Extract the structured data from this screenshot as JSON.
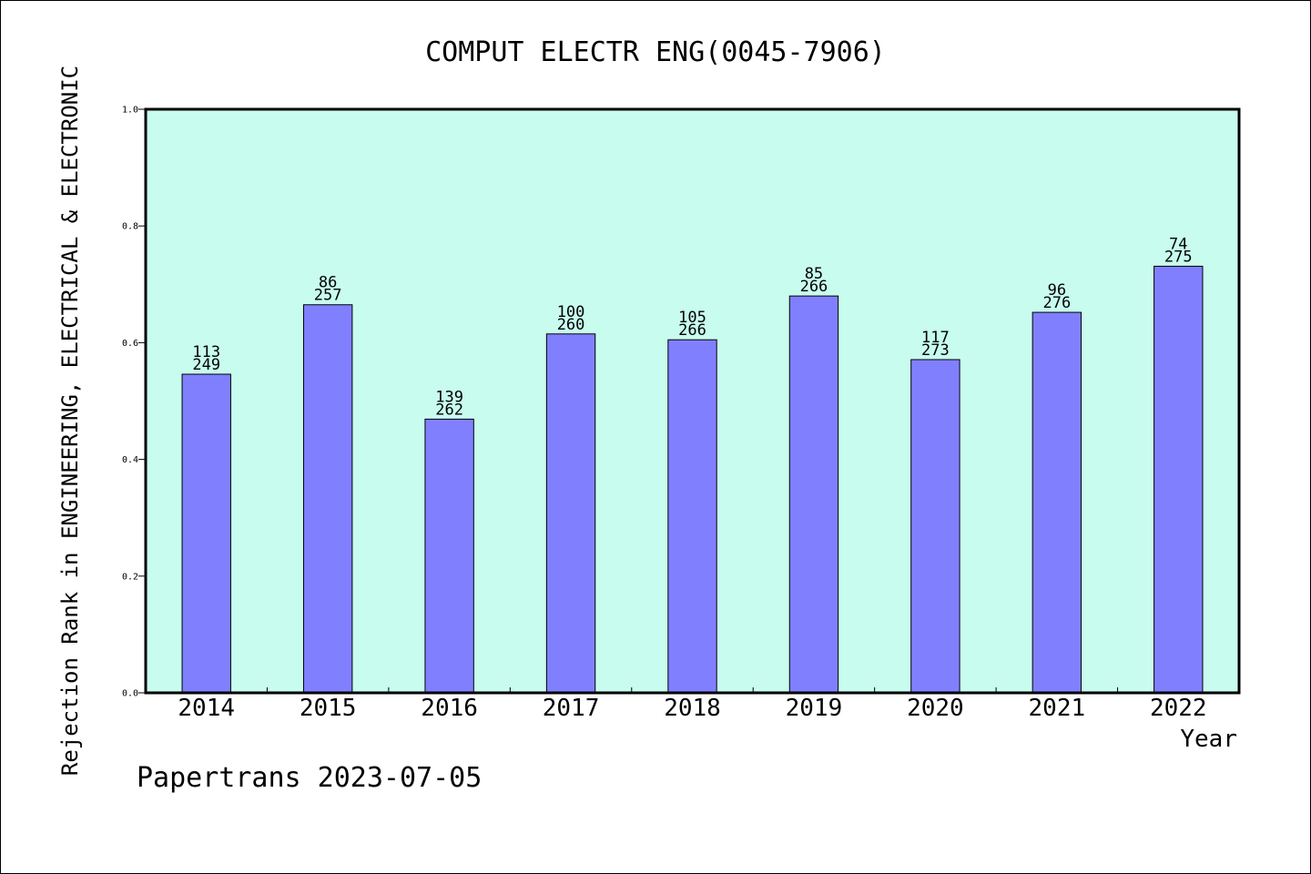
{
  "chart_data": {
    "type": "bar",
    "title": "COMPUT ELECTR ENG(0045-7906)",
    "xlabel": "Year",
    "ylabel": "Rejection Rank in ENGINEERING, ELECTRICAL & ELECTRONIC",
    "categories": [
      "2014",
      "2015",
      "2016",
      "2017",
      "2018",
      "2019",
      "2020",
      "2021",
      "2022"
    ],
    "values": [
      0.546,
      0.665,
      0.469,
      0.615,
      0.605,
      0.68,
      0.571,
      0.652,
      0.731
    ],
    "rank_labels": [
      "113",
      "86",
      "139",
      "100",
      "105",
      "85",
      "117",
      "96",
      "74"
    ],
    "total_labels": [
      "249",
      "257",
      "262",
      "260",
      "266",
      "266",
      "273",
      "276",
      "275"
    ],
    "ylim": [
      0,
      1.0
    ],
    "yticks": [
      "0.0",
      "0.2",
      "0.4",
      "0.6",
      "0.8",
      "1.0"
    ],
    "grid": false,
    "legend": "none",
    "colors": {
      "bar": "#8080ff",
      "plot_bg": "#c8fcee",
      "axis": "#000000"
    }
  },
  "footer": "Papertrans 2023-07-05"
}
